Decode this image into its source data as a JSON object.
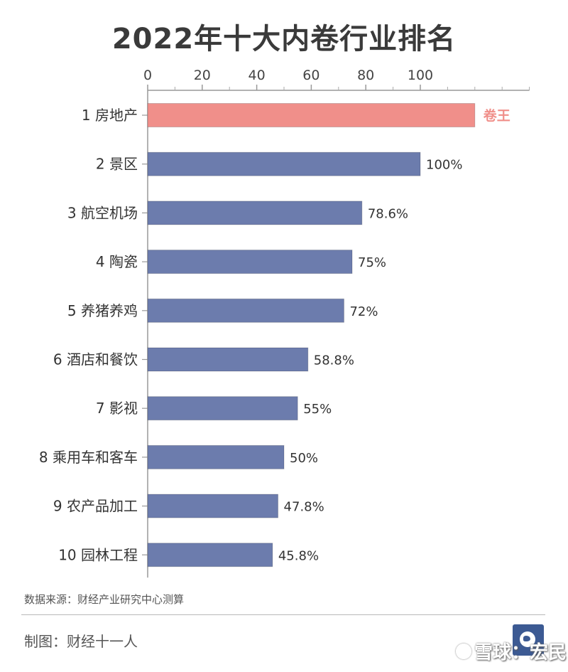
{
  "chart_data": {
    "type": "bar",
    "orientation": "horizontal",
    "title": "2022年十大内卷行业排名",
    "xlim": [
      0,
      140
    ],
    "x_ticks": [
      "0",
      "20",
      "40",
      "60",
      "80",
      "100"
    ],
    "x_tick_values": [
      0,
      20,
      40,
      60,
      80,
      100
    ],
    "x_minor_ticks": [
      10,
      30,
      50,
      70,
      90,
      110,
      120,
      130,
      140
    ],
    "categories": [
      "1 房地产",
      "2 景区",
      "3 航空机场",
      "4 陶瓷",
      "5 养猪养鸡",
      "6 酒店和餐饮",
      "7 影视",
      "8 乘用车和客车",
      "9 农产品加工",
      "10 园林工程"
    ],
    "values": [
      120,
      100,
      78.6,
      75,
      72,
      58.8,
      55,
      50,
      47.8,
      45.8
    ],
    "data_labels": [
      "卷王",
      "100%",
      "78.6%",
      "75%",
      "72%",
      "58.8%",
      "55%",
      "50%",
      "47.8%",
      "45.8%"
    ],
    "bar_colors": [
      "#f08f8a",
      "#6c7cad",
      "#6c7cad",
      "#6c7cad",
      "#6c7cad",
      "#6c7cad",
      "#6c7cad",
      "#6c7cad",
      "#6c7cad",
      "#6c7cad"
    ],
    "highlight_label_color": "#f08f8a",
    "axis_position": "top",
    "grid": false,
    "source": "数据来源：财经产业研究中心测算"
  },
  "footer": {
    "credit": "制图：财经十一人",
    "watermark": "雪球：宏民",
    "logo_icon": "globe-logo-icon"
  }
}
